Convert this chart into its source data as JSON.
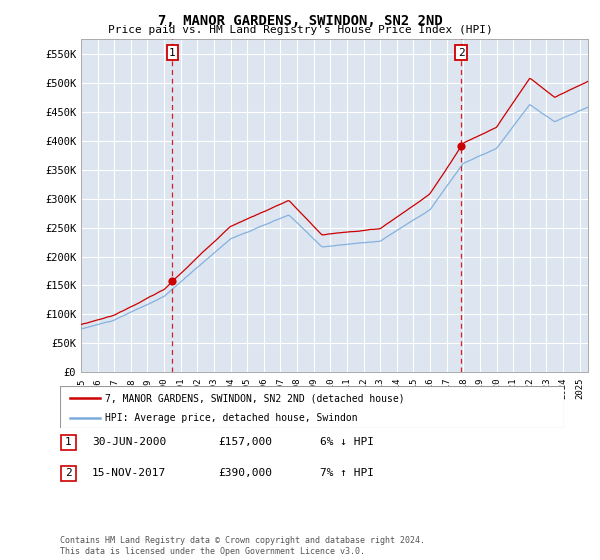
{
  "title": "7, MANOR GARDENS, SWINDON, SN2 2ND",
  "subtitle": "Price paid vs. HM Land Registry's House Price Index (HPI)",
  "ylim": [
    0,
    575000
  ],
  "yticks": [
    0,
    50000,
    100000,
    150000,
    200000,
    250000,
    300000,
    350000,
    400000,
    450000,
    500000,
    550000
  ],
  "background_color": "#dde5f0",
  "plot_bg_color": "#dde5f0",
  "grid_color": "#ffffff",
  "hpi_color": "#7aacdc",
  "price_color": "#cc0000",
  "marker1_x": 2000.5,
  "marker2_x": 2017.87,
  "marker1_price": 157000,
  "marker2_price": 390000,
  "marker1_label": "30-JUN-2000",
  "marker2_label": "15-NOV-2017",
  "marker1_hpi_note": "6% ↓ HPI",
  "marker2_hpi_note": "7% ↑ HPI",
  "legend_label_price": "7, MANOR GARDENS, SWINDON, SN2 2ND (detached house)",
  "legend_label_hpi": "HPI: Average price, detached house, Swindon",
  "footnote": "Contains HM Land Registry data © Crown copyright and database right 2024.\nThis data is licensed under the Open Government Licence v3.0.",
  "xmin": 1995.0,
  "xmax": 2025.5
}
